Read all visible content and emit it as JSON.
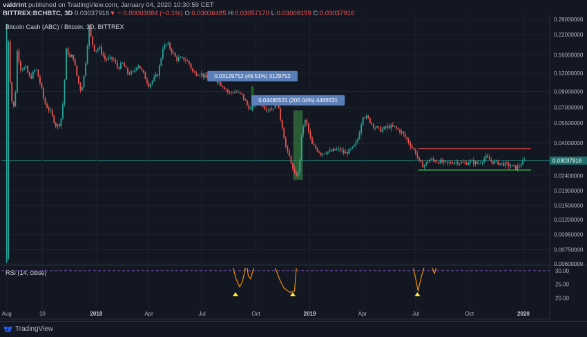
{
  "header": {
    "user": "valdrint",
    "published": "published on TradingView.com, January 04, 2020 10:30:59 CET",
    "symbol": "BITTREX:BCHBTC, 3D",
    "last": "0.03037916",
    "change": "− 0.00003084 (−0.1%)",
    "o_label": "O:",
    "o_val": "0.03036485",
    "h_label": "H:",
    "h_val": "0.03057170",
    "l_label": "L:",
    "l_val": "0.03009159",
    "c_label": "C:",
    "c_val": "0.03037916"
  },
  "legend": {
    "title": "Bitcoin Cash (ABC) / Bitcoin, 3D, BITTREX",
    "rsi": "RSI (14, close)"
  },
  "footer": {
    "brand": "TradingView"
  },
  "colors": {
    "background": "#131722",
    "up": "#26a69a",
    "down": "#ef5350",
    "rsi_line": "#ff9800",
    "rsi_level": "#9598a1",
    "arrow": "#ffeb3b",
    "box": "#4caf50",
    "measure_label": "#5b7fb8",
    "last_price": "#1e6f6a"
  },
  "chart_data": [
    {
      "type": "candlestick",
      "title": "Bitcoin Cash (ABC) / Bitcoin, 3D, BITTREX",
      "scale": "log",
      "ylim": [
        0.006,
        0.28
      ],
      "y_ticks": [
        "0.28000000",
        "0.22000000",
        "0.16000000",
        "0.12000000",
        "0.09000000",
        "0.07000000",
        "0.05500000",
        "0.04000000",
        "0.03037916",
        "0.02400000",
        "0.01900000",
        "0.01500000",
        "0.01200000",
        "0.00950000",
        "0.00750000",
        "0.00600000"
      ],
      "x_ticks": [
        "Aug",
        "10",
        "2018",
        "Apr",
        "Jul",
        "Oct",
        "2019",
        "Apr",
        "Jul",
        "Oct",
        "2020"
      ],
      "x_range": [
        "2017-07-23",
        "2020-02-15"
      ],
      "last_price": "0.03037916",
      "series": [
        {
          "points": [
            [
              "2017-08-01",
              0.0065
            ],
            [
              "2017-08-02",
              0.15
            ],
            [
              "2017-08-03",
              0.26
            ],
            [
              "2017-08-06",
              0.12
            ],
            [
              "2017-08-09",
              0.085
            ],
            [
              "2017-08-12",
              0.065
            ],
            [
              "2017-08-16",
              0.09
            ],
            [
              "2017-08-19",
              0.17
            ],
            [
              "2017-08-25",
              0.13
            ],
            [
              "2017-09-03",
              0.13
            ],
            [
              "2017-09-10",
              0.11
            ],
            [
              "2017-09-20",
              0.13
            ],
            [
              "2017-09-28",
              0.1
            ],
            [
              "2017-10-05",
              0.075
            ],
            [
              "2017-10-15",
              0.065
            ],
            [
              "2017-10-25",
              0.052
            ],
            [
              "2017-11-01",
              0.055
            ],
            [
              "2017-11-06",
              0.08
            ],
            [
              "2017-11-12",
              0.2
            ],
            [
              "2017-11-15",
              0.15
            ],
            [
              "2017-11-22",
              0.16
            ],
            [
              "2017-11-30",
              0.11
            ],
            [
              "2017-12-06",
              0.09
            ],
            [
              "2017-12-12",
              0.12
            ],
            [
              "2017-12-20",
              0.25
            ],
            [
              "2017-12-24",
              0.2
            ],
            [
              "2017-12-30",
              0.17
            ],
            [
              "2018-01-06",
              0.18
            ],
            [
              "2018-01-16",
              0.15
            ],
            [
              "2018-01-30",
              0.15
            ],
            [
              "2018-02-07",
              0.13
            ],
            [
              "2018-02-15",
              0.14
            ],
            [
              "2018-02-24",
              0.12
            ],
            [
              "2018-03-05",
              0.12
            ],
            [
              "2018-03-13",
              0.14
            ],
            [
              "2018-03-22",
              0.12
            ],
            [
              "2018-04-01",
              0.1
            ],
            [
              "2018-04-10",
              0.11
            ],
            [
              "2018-04-17",
              0.12
            ],
            [
              "2018-04-25",
              0.18
            ],
            [
              "2018-05-03",
              0.19
            ],
            [
              "2018-05-10",
              0.17
            ],
            [
              "2018-05-18",
              0.15
            ],
            [
              "2018-06-01",
              0.15
            ],
            [
              "2018-06-09",
              0.14
            ],
            [
              "2018-06-16",
              0.12
            ],
            [
              "2018-06-28",
              0.12
            ],
            [
              "2018-07-10",
              0.11
            ],
            [
              "2018-07-22",
              0.11
            ],
            [
              "2018-08-04",
              0.1
            ],
            [
              "2018-08-16",
              0.088
            ],
            [
              "2018-08-27",
              0.09
            ],
            [
              "2018-09-07",
              0.085
            ],
            [
              "2018-09-16",
              0.073
            ],
            [
              "2018-09-23",
              0.067
            ],
            [
              "2018-09-30",
              0.077
            ],
            [
              "2018-10-07",
              0.08
            ],
            [
              "2018-10-16",
              0.07
            ],
            [
              "2018-10-27",
              0.068
            ],
            [
              "2018-11-06",
              0.075
            ],
            [
              "2018-11-15",
              0.052
            ],
            [
              "2018-11-22",
              0.036
            ],
            [
              "2018-11-30",
              0.03
            ],
            [
              "2018-12-05",
              0.024
            ],
            [
              "2018-12-13",
              0.025
            ],
            [
              "2018-12-19",
              0.05
            ],
            [
              "2018-12-25",
              0.058
            ],
            [
              "2018-12-31",
              0.046
            ],
            [
              "2019-01-05",
              0.039
            ],
            [
              "2019-01-11",
              0.037
            ],
            [
              "2019-01-20",
              0.034
            ],
            [
              "2019-01-29",
              0.035
            ],
            [
              "2019-02-06",
              0.035
            ],
            [
              "2019-02-14",
              0.036
            ],
            [
              "2019-02-22",
              0.036
            ],
            [
              "2019-03-01",
              0.034
            ],
            [
              "2019-03-08",
              0.035
            ],
            [
              "2019-03-16",
              0.037
            ],
            [
              "2019-03-23",
              0.041
            ],
            [
              "2019-04-02",
              0.062
            ],
            [
              "2019-04-10",
              0.059
            ],
            [
              "2019-04-21",
              0.052
            ],
            [
              "2019-05-03",
              0.049
            ],
            [
              "2019-05-15",
              0.052
            ],
            [
              "2019-05-27",
              0.051
            ],
            [
              "2019-06-08",
              0.047
            ],
            [
              "2019-06-20",
              0.04
            ],
            [
              "2019-07-02",
              0.034
            ],
            [
              "2019-07-08",
              0.029
            ],
            [
              "2019-07-15",
              0.028
            ],
            [
              "2019-07-25",
              0.031
            ],
            [
              "2019-08-09",
              0.03
            ],
            [
              "2019-08-23",
              0.029
            ],
            [
              "2019-09-07",
              0.03
            ],
            [
              "2019-09-22",
              0.029
            ],
            [
              "2019-10-02",
              0.03
            ],
            [
              "2019-10-15",
              0.029
            ],
            [
              "2019-10-29",
              0.032
            ],
            [
              "2019-11-08",
              0.03
            ],
            [
              "2019-11-25",
              0.029
            ],
            [
              "2019-12-10",
              0.028
            ],
            [
              "2019-12-20",
              0.027
            ],
            [
              "2019-12-28",
              0.029
            ],
            [
              "2020-01-04",
              0.03037916
            ]
          ]
        }
      ],
      "annotations": [
        {
          "text": "0.03129752 (46.51%) 3129752",
          "from": [
            "2018-09-23",
            0.067
          ],
          "to": [
            "2018-09-27",
            0.098
          ]
        },
        {
          "text": "0.04486531 (200.04%) 4486531",
          "from": [
            "2018-12-04",
            0.0224
          ],
          "to": [
            "2018-12-20",
            0.067
          ]
        }
      ],
      "levels": [
        {
          "name": "range-top",
          "value": 0.0366,
          "from": "2019-07-05",
          "to": "2020-01-14",
          "color": "#ef5350"
        },
        {
          "name": "range-bottom",
          "value": 0.0262,
          "from": "2019-07-05",
          "to": "2020-01-14",
          "color": "#4caf50"
        }
      ]
    },
    {
      "type": "line",
      "title": "RSI (14, close)",
      "ylim": [
        16,
        31
      ],
      "y_ticks": [
        "30.00",
        "25.00",
        "20.00"
      ],
      "level": 30,
      "segments": [
        [
          [
            "2018-08-23",
            31
          ],
          [
            "2018-08-28",
            27
          ],
          [
            "2018-09-03",
            24
          ],
          [
            "2018-09-08",
            26
          ],
          [
            "2018-09-13",
            31
          ]
        ],
        [
          [
            "2018-09-16",
            31
          ],
          [
            "2018-09-18",
            28
          ],
          [
            "2018-09-22",
            27
          ],
          [
            "2018-09-27",
            31
          ]
        ],
        [
          [
            "2018-11-03",
            31
          ],
          [
            "2018-11-10",
            27
          ],
          [
            "2018-11-18",
            23.5
          ],
          [
            "2018-11-28",
            22
          ],
          [
            "2018-12-06",
            22.5
          ],
          [
            "2018-12-09",
            31
          ]
        ],
        [
          [
            "2019-06-27",
            31
          ],
          [
            "2019-07-02",
            26
          ],
          [
            "2019-07-05",
            22.5
          ],
          [
            "2019-07-11",
            28
          ],
          [
            "2019-07-15",
            31
          ]
        ],
        [
          [
            "2019-07-29",
            31
          ],
          [
            "2019-08-02",
            29
          ],
          [
            "2019-08-05",
            31
          ]
        ]
      ],
      "arrows": [
        "2018-08-27",
        "2018-12-03",
        "2019-07-04"
      ]
    }
  ]
}
